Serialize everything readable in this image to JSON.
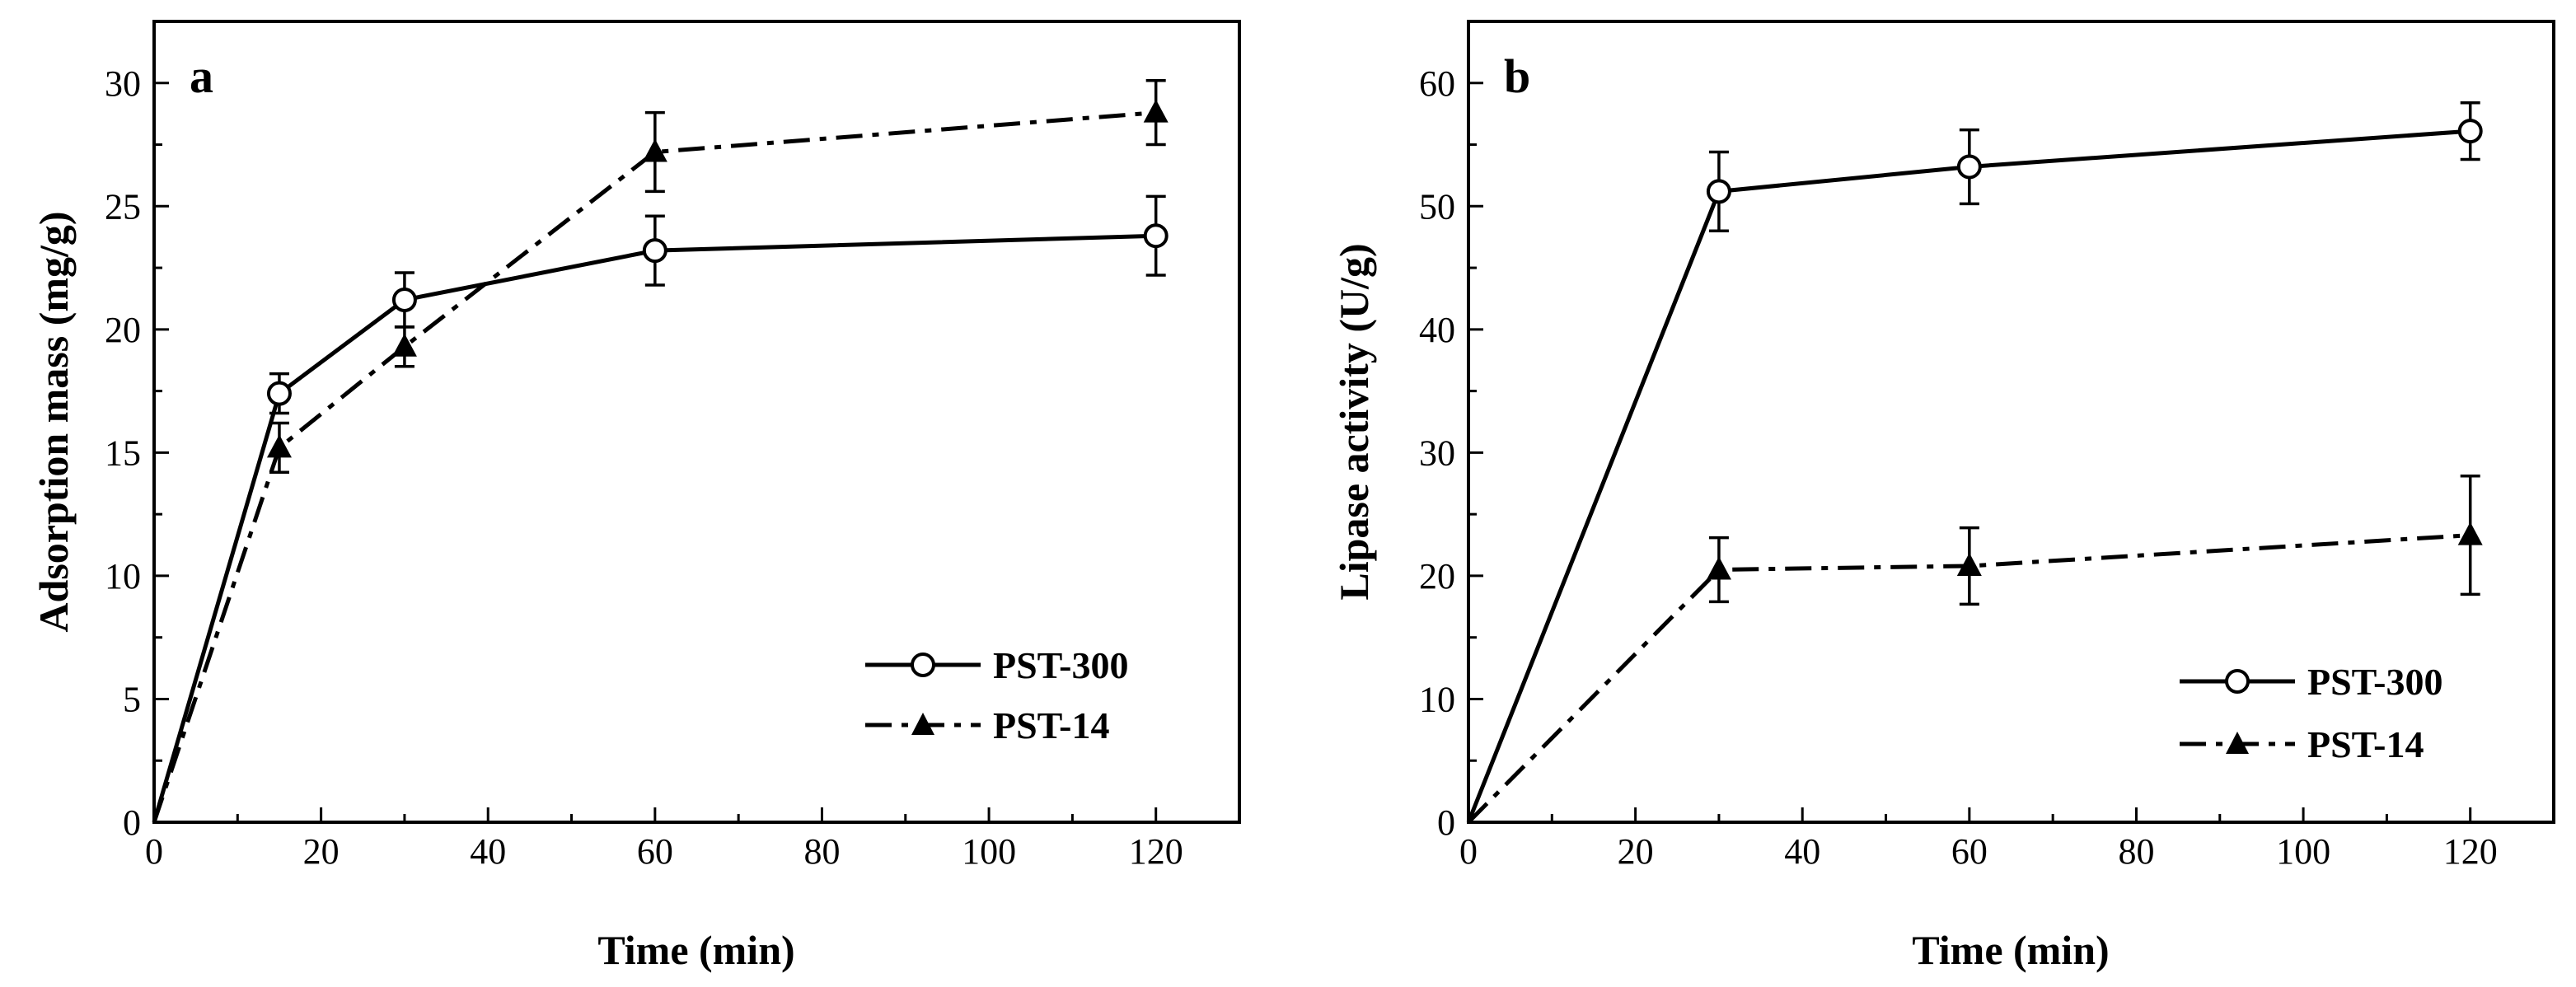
{
  "chart_data": [
    {
      "type": "line",
      "panel_label": "a",
      "xlabel": "Time (min)",
      "ylabel": "Adsorption mass (mg/g)",
      "xlim": [
        0,
        130
      ],
      "ylim": [
        0,
        32.5
      ],
      "xticks": [
        0,
        20,
        40,
        60,
        80,
        100,
        120
      ],
      "yticks": [
        0,
        5,
        10,
        15,
        20,
        25,
        30
      ],
      "legend_position": "bottom-right",
      "series": [
        {
          "name": "PST-300",
          "marker": "open-circle",
          "line_style": "solid",
          "x": [
            0,
            15,
            30,
            60,
            120
          ],
          "y": [
            0,
            17.4,
            21.2,
            23.2,
            23.8
          ],
          "err": [
            0,
            0.8,
            1.1,
            1.4,
            1.6
          ]
        },
        {
          "name": "PST-14",
          "marker": "filled-triangle",
          "line_style": "dash-dot",
          "x": [
            0,
            15,
            30,
            60,
            120
          ],
          "y": [
            0,
            15.2,
            19.3,
            27.2,
            28.8
          ],
          "err": [
            0,
            1.0,
            0.8,
            1.6,
            1.3
          ]
        }
      ]
    },
    {
      "type": "line",
      "panel_label": "b",
      "xlabel": "Time (min)",
      "ylabel": "Lipase activity (U/g)",
      "xlim": [
        0,
        130
      ],
      "ylim": [
        0,
        65
      ],
      "xticks": [
        0,
        20,
        40,
        60,
        80,
        100,
        120
      ],
      "yticks": [
        0,
        10,
        20,
        30,
        40,
        50,
        60
      ],
      "legend_position": "bottom-right",
      "series": [
        {
          "name": "PST-300",
          "marker": "open-circle",
          "line_style": "solid",
          "x": [
            0,
            30,
            60,
            120
          ],
          "y": [
            0,
            51.2,
            53.2,
            56.1
          ],
          "err": [
            0,
            3.2,
            3.0,
            2.3
          ]
        },
        {
          "name": "PST-14",
          "marker": "filled-triangle",
          "line_style": "dash-dot",
          "x": [
            0,
            30,
            60,
            120
          ],
          "y": [
            0,
            20.5,
            20.8,
            23.3
          ],
          "err": [
            0,
            2.6,
            3.1,
            4.8
          ]
        }
      ]
    }
  ]
}
